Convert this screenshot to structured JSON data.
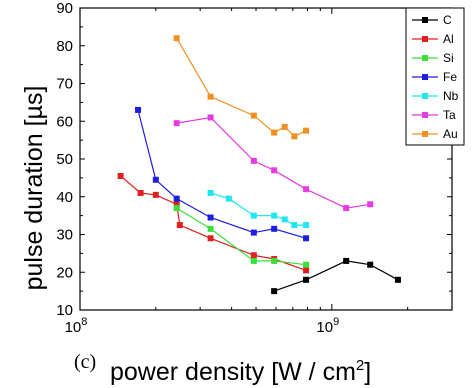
{
  "chart_data": {
    "type": "line",
    "panel_label": "(c)",
    "xlabel": "power density [W / cm",
    "xlabel_sup": "2",
    "xlabel_end": "]",
    "ylabel": "pulse duration [µs]",
    "xscale": "log",
    "xlim": [
      100000000.0,
      3000000000.0
    ],
    "ylim": [
      10,
      90
    ],
    "yticks": [
      10,
      20,
      30,
      40,
      50,
      60,
      70,
      80,
      90
    ],
    "xticks": [
      {
        "value": 100000000.0,
        "base": "10",
        "exp": "8"
      },
      {
        "value": 1000000000.0,
        "base": "10",
        "exp": "9"
      }
    ],
    "grid": false,
    "legend_position": "top-right",
    "series": [
      {
        "name": "C",
        "color": "#000000",
        "x": [
          590000000.0,
          790000000.0,
          1140000000.0,
          1420000000.0,
          1830000000.0
        ],
        "y": [
          15.0,
          18.0,
          23.0,
          22.0,
          18.0
        ]
      },
      {
        "name": "Al",
        "color": "#e0201e",
        "x": [
          145000000.0,
          174000000.0,
          200000000.0,
          242000000.0,
          249000000.0,
          330000000.0,
          490000000.0,
          590000000.0,
          790000000.0
        ],
        "y": [
          45.5,
          41.0,
          40.5,
          38.0,
          32.5,
          29.0,
          24.5,
          23.5,
          20.5
        ]
      },
      {
        "name": "Si",
        "color": "#3ce03c",
        "x": [
          242000000.0,
          330000000.0,
          490000000.0,
          590000000.0,
          790000000.0
        ],
        "y": [
          37.0,
          31.5,
          23.0,
          23.0,
          22.0
        ]
      },
      {
        "name": "Fe",
        "color": "#1e1ee0",
        "x": [
          170000000.0,
          200000000.0,
          242000000.0,
          330000000.0,
          490000000.0,
          590000000.0,
          790000000.0
        ],
        "y": [
          63.0,
          44.5,
          39.5,
          34.5,
          30.5,
          31.5,
          29.0
        ]
      },
      {
        "name": "Nb",
        "color": "#21e5f0",
        "x": [
          330000000.0,
          390000000.0,
          490000000.0,
          590000000.0,
          650000000.0,
          710000000.0,
          790000000.0
        ],
        "y": [
          41.0,
          39.5,
          35.0,
          35.0,
          34.0,
          32.5,
          32.5
        ]
      },
      {
        "name": "Ta",
        "color": "#e43ce0",
        "x": [
          242000000.0,
          330000000.0,
          490000000.0,
          590000000.0,
          790000000.0,
          1140000000.0,
          1420000000.0
        ],
        "y": [
          59.5,
          61.0,
          49.5,
          47.0,
          42.0,
          37.0,
          38.0
        ]
      },
      {
        "name": "Au",
        "color": "#f09020",
        "x": [
          242000000.0,
          330000000.0,
          490000000.0,
          590000000.0,
          650000000.0,
          710000000.0,
          790000000.0
        ],
        "y": [
          82.0,
          66.5,
          61.5,
          57.0,
          58.5,
          56.0,
          57.5
        ]
      }
    ]
  }
}
